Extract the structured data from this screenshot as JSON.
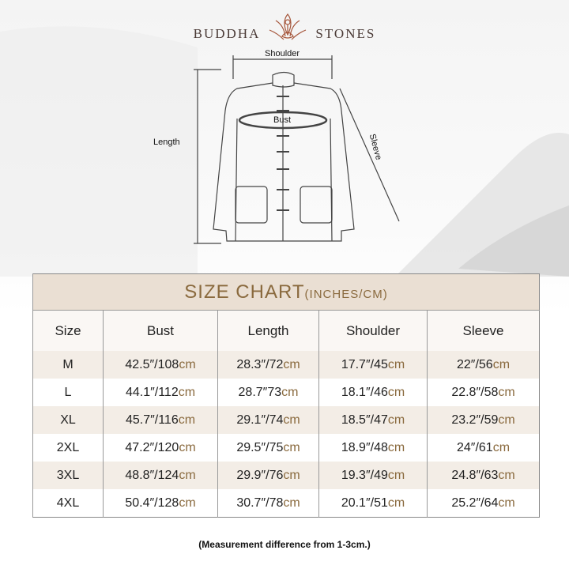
{
  "brand": {
    "left": "BUDDHA",
    "right": "STONES"
  },
  "diagram": {
    "shoulder": "Shoulder",
    "bust": "Bust",
    "length": "Length",
    "sleeve": "Sleeve"
  },
  "table": {
    "title": "SIZE CHART",
    "title_units": "(INCHES/CM)",
    "headers": [
      "Size",
      "Bust",
      "Length",
      "Shoulder",
      "Sleeve"
    ],
    "rows": [
      {
        "size": "M",
        "cells": [
          {
            "v": "42.5″/108",
            "u": "cm"
          },
          {
            "v": "28.3″/72",
            "u": "cm"
          },
          {
            "v": "17.7″/45",
            "u": "cm"
          },
          {
            "v": "22″/56",
            "u": "cm"
          }
        ]
      },
      {
        "size": "L",
        "cells": [
          {
            "v": "44.1″/112",
            "u": "cm"
          },
          {
            "v": "28.7″73",
            "u": "cm"
          },
          {
            "v": "18.1″/46",
            "u": "cm"
          },
          {
            "v": "22.8″/58",
            "u": "cm"
          }
        ]
      },
      {
        "size": "XL",
        "cells": [
          {
            "v": "45.7″/116",
            "u": "cm"
          },
          {
            "v": "29.1″/74",
            "u": "cm"
          },
          {
            "v": "18.5″/47",
            "u": "cm"
          },
          {
            "v": "23.2″/59",
            "u": "cm"
          }
        ]
      },
      {
        "size": "2XL",
        "cells": [
          {
            "v": "47.2″/120",
            "u": "cm"
          },
          {
            "v": "29.5″/75",
            "u": "cm"
          },
          {
            "v": "18.9″/48",
            "u": "cm"
          },
          {
            "v": "24″/61",
            "u": "cm"
          }
        ]
      },
      {
        "size": "3XL",
        "cells": [
          {
            "v": "48.8″/124",
            "u": "cm"
          },
          {
            "v": "29.9″/76",
            "u": "cm"
          },
          {
            "v": "19.3″/49",
            "u": "cm"
          },
          {
            "v": "24.8″/63",
            "u": "cm"
          }
        ]
      },
      {
        "size": "4XL",
        "cells": [
          {
            "v": "50.4″/128",
            "u": "cm"
          },
          {
            "v": "30.7″/78",
            "u": "cm"
          },
          {
            "v": "20.1″/51",
            "u": "cm"
          },
          {
            "v": "25.2″/64",
            "u": "cm"
          }
        ]
      }
    ]
  },
  "note": "(Measurement difference from 1-3cm.)",
  "colors": {
    "accent": "#8a6a3e",
    "title_bg": "#eadfd3",
    "row_alt": "#f3ede6",
    "logo": "#a5553a"
  }
}
